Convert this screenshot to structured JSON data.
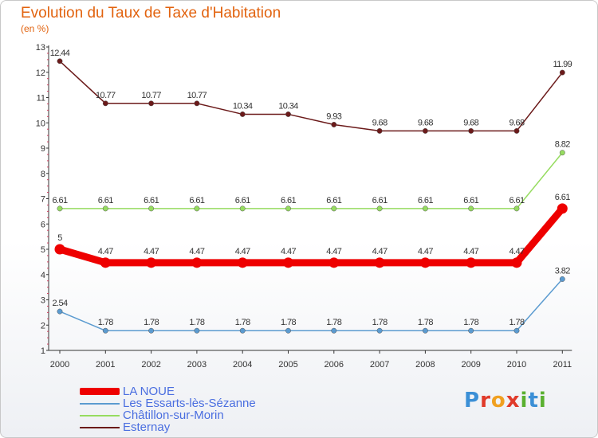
{
  "chart_data": {
    "type": "line",
    "title": "Evolution du Taux de Taxe d'Habitation",
    "subtitle": "(en %)",
    "xlabel": "",
    "ylabel": "",
    "ylim": [
      1,
      13
    ],
    "y_ticks": [
      "1",
      "2",
      "3",
      "4",
      "5",
      "6",
      "7",
      "8",
      "9",
      "10",
      "11",
      "12",
      "13"
    ],
    "categories": [
      "2000",
      "2001",
      "2002",
      "2003",
      "2004",
      "2005",
      "2006",
      "2007",
      "2008",
      "2009",
      "2010",
      "2011"
    ],
    "series": [
      {
        "name": "Esternay",
        "color": "#6b1a1a",
        "values": [
          12.44,
          10.77,
          10.77,
          10.77,
          10.34,
          10.34,
          9.93,
          9.68,
          9.68,
          9.68,
          9.68,
          11.99
        ],
        "labels": [
          "12.44",
          "10.77",
          "10.77",
          "10.77",
          "10.34",
          "10.34",
          "9.93",
          "9.68",
          "9.68",
          "9.68",
          "9.68",
          "11.99"
        ]
      },
      {
        "name": "Châtillon-sur-Morin",
        "color": "#96dc60",
        "values": [
          6.61,
          6.61,
          6.61,
          6.61,
          6.61,
          6.61,
          6.61,
          6.61,
          6.61,
          6.61,
          6.61,
          8.82
        ],
        "labels": [
          "6.61",
          "6.61",
          "6.61",
          "6.61",
          "6.61",
          "6.61",
          "6.61",
          "6.61",
          "6.61",
          "6.61",
          "6.61",
          "8.82"
        ]
      },
      {
        "name": "Les Essarts-lès-Sézanne",
        "color": "#5b9bd0",
        "values": [
          2.54,
          1.78,
          1.78,
          1.78,
          1.78,
          1.78,
          1.78,
          1.78,
          1.78,
          1.78,
          1.78,
          3.82
        ],
        "labels": [
          "2.54",
          "1.78",
          "1.78",
          "1.78",
          "1.78",
          "1.78",
          "1.78",
          "1.78",
          "1.78",
          "1.78",
          "1.78",
          "3.82"
        ]
      },
      {
        "name": "LA NOUE",
        "color": "#ee0000",
        "values": [
          5,
          4.47,
          4.47,
          4.47,
          4.47,
          4.47,
          4.47,
          4.47,
          4.47,
          4.47,
          4.47,
          6.61
        ],
        "labels": [
          "5",
          "4.47",
          "4.47",
          "4.47",
          "4.47",
          "4.47",
          "4.47",
          "4.47",
          "4.47",
          "4.47",
          "4.47",
          "6.61"
        ]
      }
    ],
    "legend": [
      {
        "name": "LA NOUE",
        "color": "#ee0000",
        "text_color": "#4a6ee0"
      },
      {
        "name": "Les Essarts-lès-Sézanne",
        "color": "#5b9bd0",
        "text_color": "#4a6ee0"
      },
      {
        "name": "Châtillon-sur-Morin",
        "color": "#96dc60",
        "text_color": "#4a6ee0"
      },
      {
        "name": "Esternay",
        "color": "#6b1a1a",
        "text_color": "#4a6ee0"
      }
    ],
    "legend_position": "bottom-left",
    "grid": false
  },
  "branding": {
    "letters": [
      "P",
      "r",
      "o",
      "x",
      "i",
      "t",
      "i"
    ],
    "colors": [
      "#3b8fd6",
      "#e03a2a",
      "#f0a020",
      "#e03a2a",
      "#5ab030",
      "#3b8fd6",
      "#5ab030"
    ]
  }
}
